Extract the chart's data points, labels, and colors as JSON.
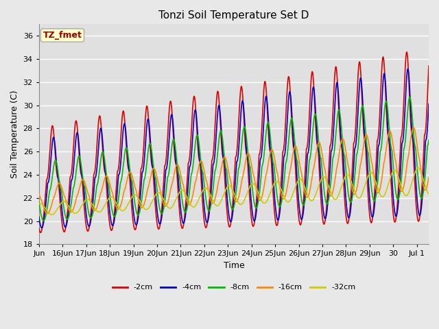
{
  "title": "Tonzi Soil Temperature Set D",
  "xlabel": "Time",
  "ylabel": "Soil Temperature (C)",
  "ylim": [
    18,
    37
  ],
  "xlim": [
    0,
    16.5
  ],
  "annotation_text": "TZ_fmet",
  "annotation_bg": "#ffffcc",
  "annotation_border": "#aaaaaa",
  "annotation_color": "#990000",
  "fig_bg": "#e8e8e8",
  "plot_bg": "#e0e0e0",
  "grid_color": "#ffffff",
  "series": {
    "-2cm": {
      "color": "#dd0000",
      "lw": 1.2
    },
    "-4cm": {
      "color": "#0000cc",
      "lw": 1.2
    },
    "-8cm": {
      "color": "#00bb00",
      "lw": 1.2
    },
    "-16cm": {
      "color": "#ff8800",
      "lw": 1.2
    },
    "-32cm": {
      "color": "#cccc00",
      "lw": 1.2
    }
  },
  "tick_labels": [
    "Jun",
    "16Jun",
    "17Jun",
    "18Jun",
    "19Jun",
    "20Jun",
    "21Jun",
    "22Jun",
    "23Jun",
    "24Jun",
    "25Jun",
    "26Jun",
    "27Jun",
    "28Jun",
    "29Jun",
    "30",
    "Jul 1"
  ],
  "tick_positions": [
    0,
    1,
    2,
    3,
    4,
    5,
    6,
    7,
    8,
    9,
    10,
    11,
    12,
    13,
    14,
    15,
    16
  ],
  "yticks": [
    18,
    20,
    22,
    24,
    26,
    28,
    30,
    32,
    34,
    36
  ]
}
